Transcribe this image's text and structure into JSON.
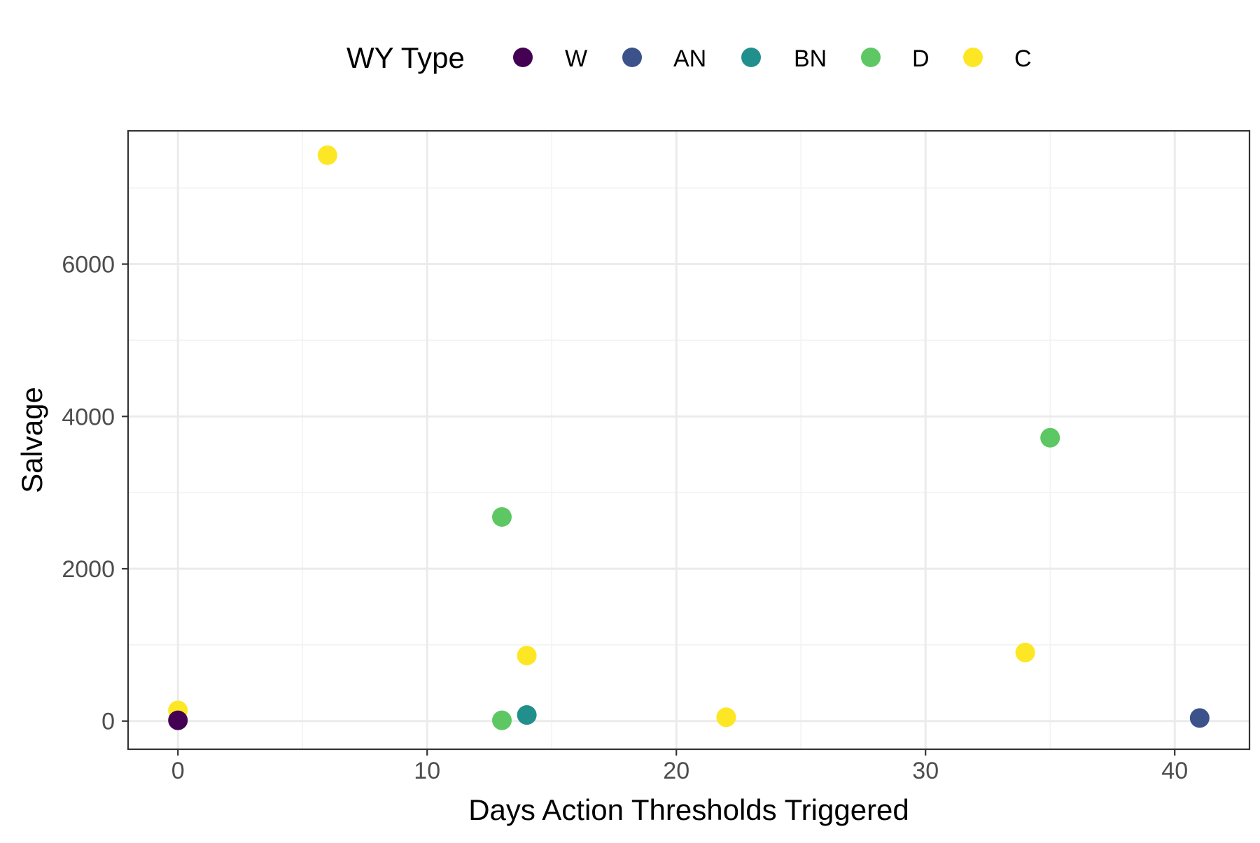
{
  "chart_data": {
    "type": "scatter",
    "title": "",
    "xlabel": "Days Action Thresholds Triggered",
    "ylabel": "Salvage",
    "xlim": [
      -2,
      43
    ],
    "ylim": [
      -370,
      7750
    ],
    "x_ticks": [
      0,
      10,
      20,
      30,
      40
    ],
    "y_ticks": [
      0,
      2000,
      4000,
      6000
    ],
    "x_tick_labels": [
      "0",
      "10",
      "20",
      "30",
      "40"
    ],
    "y_tick_labels": [
      "0",
      "2000",
      "4000",
      "6000"
    ],
    "grid": true,
    "legend": {
      "title": "WY Type",
      "position": "top"
    },
    "series": [
      {
        "name": "W",
        "color": "#440154",
        "points": [
          {
            "x": 0,
            "y": 10
          }
        ]
      },
      {
        "name": "AN",
        "color": "#3B528B",
        "points": [
          {
            "x": 41,
            "y": 40
          }
        ]
      },
      {
        "name": "BN",
        "color": "#21908C",
        "points": [
          {
            "x": 14,
            "y": 80
          }
        ]
      },
      {
        "name": "D",
        "color": "#5DC863",
        "points": [
          {
            "x": 13,
            "y": 2680
          },
          {
            "x": 35,
            "y": 3720
          },
          {
            "x": 13,
            "y": 10
          }
        ]
      },
      {
        "name": "C",
        "color": "#FDE725",
        "points": [
          {
            "x": 6,
            "y": 7430
          },
          {
            "x": 0,
            "y": 140
          },
          {
            "x": 14,
            "y": 860
          },
          {
            "x": 22,
            "y": 50
          },
          {
            "x": 34,
            "y": 900
          }
        ]
      }
    ],
    "draw_order": [
      {
        "series": "C",
        "point": 0
      },
      {
        "series": "C",
        "point": 1
      },
      {
        "series": "D",
        "point": 0
      },
      {
        "series": "C",
        "point": 2
      },
      {
        "series": "D",
        "point": 1
      },
      {
        "series": "C",
        "point": 3
      },
      {
        "series": "C",
        "point": 4
      },
      {
        "series": "D",
        "point": 2
      },
      {
        "series": "BN",
        "point": 0
      },
      {
        "series": "AN",
        "point": 0
      },
      {
        "series": "W",
        "point": 0
      }
    ]
  }
}
